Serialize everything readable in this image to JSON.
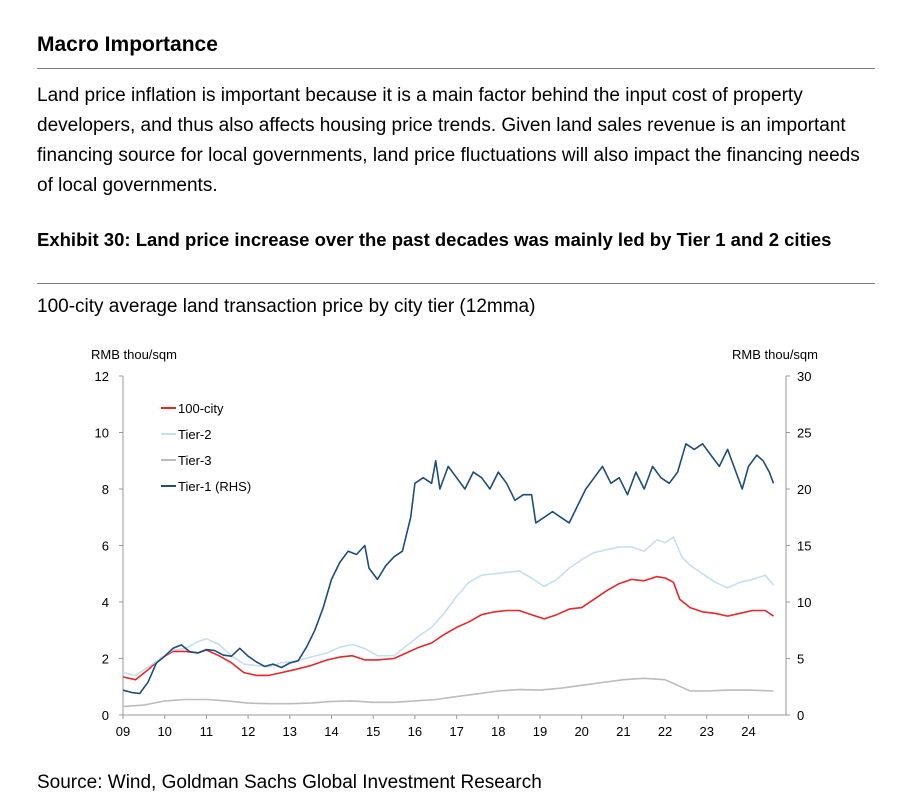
{
  "section_title": "Macro Importance",
  "paragraph": "Land price inflation is important because it is a main factor behind the input cost of property developers, and thus also affects housing price trends. Given land sales revenue is an important financing source for local governments, land price fluctuations will also impact the financing needs of local governments.",
  "exhibit_title": "Exhibit 30: Land price increase over the past decades was mainly led by Tier 1 and 2 cities",
  "chart_subtitle": "100-city average land transaction price by city tier (12mma)",
  "source": "Source: Wind, Goldman Sachs Global Investment Research",
  "chart_data": {
    "type": "line",
    "left_axis_label": "RMB thou/sqm",
    "right_axis_label": "RMB thou/sqm",
    "x_ticks": [
      "09",
      "10",
      "11",
      "12",
      "13",
      "14",
      "15",
      "16",
      "17",
      "18",
      "19",
      "20",
      "21",
      "22",
      "23",
      "24"
    ],
    "x_range": [
      2009,
      2024.9
    ],
    "y_left_range": [
      0,
      12
    ],
    "y_left_ticks": [
      "0",
      "2",
      "4",
      "6",
      "8",
      "10",
      "12"
    ],
    "y_right_range": [
      0,
      30
    ],
    "y_right_ticks": [
      "0",
      "5",
      "10",
      "15",
      "20",
      "25",
      "30"
    ],
    "grid": false,
    "legend_position": "top-left",
    "series": [
      {
        "name": "100-city",
        "axis": "left",
        "color": "#e8262a",
        "points": [
          [
            2009.0,
            1.35
          ],
          [
            2009.3,
            1.25
          ],
          [
            2009.6,
            1.6
          ],
          [
            2009.9,
            2.0
          ],
          [
            2010.2,
            2.25
          ],
          [
            2010.5,
            2.25
          ],
          [
            2010.8,
            2.2
          ],
          [
            2011.0,
            2.3
          ],
          [
            2011.3,
            2.1
          ],
          [
            2011.6,
            1.85
          ],
          [
            2011.9,
            1.5
          ],
          [
            2012.2,
            1.4
          ],
          [
            2012.5,
            1.4
          ],
          [
            2012.8,
            1.5
          ],
          [
            2013.1,
            1.6
          ],
          [
            2013.5,
            1.75
          ],
          [
            2013.9,
            1.95
          ],
          [
            2014.2,
            2.05
          ],
          [
            2014.5,
            2.1
          ],
          [
            2014.8,
            1.95
          ],
          [
            2015.1,
            1.95
          ],
          [
            2015.5,
            2.0
          ],
          [
            2015.8,
            2.2
          ],
          [
            2016.1,
            2.4
          ],
          [
            2016.4,
            2.55
          ],
          [
            2016.7,
            2.85
          ],
          [
            2017.0,
            3.1
          ],
          [
            2017.3,
            3.3
          ],
          [
            2017.6,
            3.55
          ],
          [
            2017.9,
            3.65
          ],
          [
            2018.2,
            3.7
          ],
          [
            2018.5,
            3.7
          ],
          [
            2018.8,
            3.55
          ],
          [
            2019.1,
            3.4
          ],
          [
            2019.4,
            3.55
          ],
          [
            2019.7,
            3.75
          ],
          [
            2020.0,
            3.8
          ],
          [
            2020.3,
            4.1
          ],
          [
            2020.6,
            4.4
          ],
          [
            2020.9,
            4.65
          ],
          [
            2021.2,
            4.8
          ],
          [
            2021.5,
            4.75
          ],
          [
            2021.8,
            4.9
          ],
          [
            2022.0,
            4.85
          ],
          [
            2022.2,
            4.7
          ],
          [
            2022.35,
            4.1
          ],
          [
            2022.6,
            3.8
          ],
          [
            2022.9,
            3.65
          ],
          [
            2023.2,
            3.6
          ],
          [
            2023.5,
            3.5
          ],
          [
            2023.8,
            3.6
          ],
          [
            2024.1,
            3.7
          ],
          [
            2024.4,
            3.7
          ],
          [
            2024.6,
            3.5
          ]
        ]
      },
      {
        "name": "Tier-2",
        "axis": "left",
        "color": "#c5dff0",
        "points": [
          [
            2009.0,
            1.5
          ],
          [
            2009.3,
            1.4
          ],
          [
            2009.6,
            1.7
          ],
          [
            2009.9,
            2.0
          ],
          [
            2010.2,
            2.3
          ],
          [
            2010.5,
            2.35
          ],
          [
            2010.8,
            2.6
          ],
          [
            2011.0,
            2.7
          ],
          [
            2011.3,
            2.5
          ],
          [
            2011.6,
            2.1
          ],
          [
            2011.9,
            1.8
          ],
          [
            2012.2,
            1.75
          ],
          [
            2012.5,
            1.7
          ],
          [
            2012.8,
            1.85
          ],
          [
            2013.1,
            1.9
          ],
          [
            2013.5,
            2.05
          ],
          [
            2013.9,
            2.2
          ],
          [
            2014.2,
            2.4
          ],
          [
            2014.5,
            2.5
          ],
          [
            2014.8,
            2.35
          ],
          [
            2015.1,
            2.1
          ],
          [
            2015.5,
            2.1
          ],
          [
            2015.8,
            2.45
          ],
          [
            2016.1,
            2.8
          ],
          [
            2016.4,
            3.1
          ],
          [
            2016.7,
            3.6
          ],
          [
            2017.0,
            4.2
          ],
          [
            2017.3,
            4.7
          ],
          [
            2017.6,
            4.95
          ],
          [
            2017.9,
            5.0
          ],
          [
            2018.2,
            5.05
          ],
          [
            2018.5,
            5.1
          ],
          [
            2018.8,
            4.85
          ],
          [
            2019.1,
            4.55
          ],
          [
            2019.4,
            4.8
          ],
          [
            2019.7,
            5.2
          ],
          [
            2020.0,
            5.5
          ],
          [
            2020.3,
            5.75
          ],
          [
            2020.6,
            5.85
          ],
          [
            2020.9,
            5.95
          ],
          [
            2021.2,
            5.95
          ],
          [
            2021.5,
            5.8
          ],
          [
            2021.8,
            6.2
          ],
          [
            2022.0,
            6.1
          ],
          [
            2022.2,
            6.3
          ],
          [
            2022.4,
            5.6
          ],
          [
            2022.6,
            5.3
          ],
          [
            2022.9,
            5.0
          ],
          [
            2023.2,
            4.7
          ],
          [
            2023.5,
            4.5
          ],
          [
            2023.8,
            4.7
          ],
          [
            2024.1,
            4.8
          ],
          [
            2024.4,
            4.95
          ],
          [
            2024.6,
            4.6
          ]
        ]
      },
      {
        "name": "Tier-3",
        "axis": "left",
        "color": "#bcbcbc",
        "points": [
          [
            2009.0,
            0.3
          ],
          [
            2009.5,
            0.35
          ],
          [
            2010.0,
            0.5
          ],
          [
            2010.5,
            0.55
          ],
          [
            2011.0,
            0.55
          ],
          [
            2011.5,
            0.5
          ],
          [
            2012.0,
            0.42
          ],
          [
            2012.5,
            0.4
          ],
          [
            2013.0,
            0.4
          ],
          [
            2013.5,
            0.42
          ],
          [
            2014.0,
            0.48
          ],
          [
            2014.5,
            0.5
          ],
          [
            2015.0,
            0.45
          ],
          [
            2015.5,
            0.45
          ],
          [
            2016.0,
            0.5
          ],
          [
            2016.5,
            0.55
          ],
          [
            2017.0,
            0.65
          ],
          [
            2017.5,
            0.75
          ],
          [
            2018.0,
            0.85
          ],
          [
            2018.5,
            0.9
          ],
          [
            2019.0,
            0.88
          ],
          [
            2019.5,
            0.95
          ],
          [
            2020.0,
            1.05
          ],
          [
            2020.5,
            1.15
          ],
          [
            2021.0,
            1.25
          ],
          [
            2021.5,
            1.3
          ],
          [
            2022.0,
            1.25
          ],
          [
            2022.3,
            1.05
          ],
          [
            2022.6,
            0.85
          ],
          [
            2023.0,
            0.85
          ],
          [
            2023.5,
            0.88
          ],
          [
            2024.0,
            0.88
          ],
          [
            2024.6,
            0.85
          ]
        ]
      },
      {
        "name": "Tier-1 (RHS)",
        "axis": "right",
        "color": "#1e4d78",
        "points": [
          [
            2009.0,
            2.2
          ],
          [
            2009.2,
            2.0
          ],
          [
            2009.4,
            1.9
          ],
          [
            2009.6,
            2.9
          ],
          [
            2009.8,
            4.6
          ],
          [
            2010.0,
            5.2
          ],
          [
            2010.2,
            5.9
          ],
          [
            2010.4,
            6.2
          ],
          [
            2010.6,
            5.6
          ],
          [
            2010.8,
            5.5
          ],
          [
            2011.0,
            5.8
          ],
          [
            2011.2,
            5.7
          ],
          [
            2011.4,
            5.3
          ],
          [
            2011.6,
            5.2
          ],
          [
            2011.8,
            5.9
          ],
          [
            2012.0,
            5.2
          ],
          [
            2012.2,
            4.7
          ],
          [
            2012.4,
            4.3
          ],
          [
            2012.6,
            4.5
          ],
          [
            2012.8,
            4.2
          ],
          [
            2013.0,
            4.6
          ],
          [
            2013.2,
            4.8
          ],
          [
            2013.4,
            6.0
          ],
          [
            2013.6,
            7.5
          ],
          [
            2013.8,
            9.5
          ],
          [
            2014.0,
            12.0
          ],
          [
            2014.2,
            13.5
          ],
          [
            2014.4,
            14.5
          ],
          [
            2014.6,
            14.2
          ],
          [
            2014.8,
            15.0
          ],
          [
            2014.9,
            13.0
          ],
          [
            2015.1,
            12.0
          ],
          [
            2015.3,
            13.2
          ],
          [
            2015.5,
            14.0
          ],
          [
            2015.7,
            14.5
          ],
          [
            2015.9,
            17.5
          ],
          [
            2016.0,
            20.5
          ],
          [
            2016.2,
            21.0
          ],
          [
            2016.4,
            20.5
          ],
          [
            2016.5,
            22.5
          ],
          [
            2016.6,
            20.0
          ],
          [
            2016.8,
            22.0
          ],
          [
            2017.0,
            21.0
          ],
          [
            2017.2,
            20.0
          ],
          [
            2017.4,
            21.5
          ],
          [
            2017.6,
            21.0
          ],
          [
            2017.8,
            20.0
          ],
          [
            2018.0,
            21.5
          ],
          [
            2018.2,
            20.5
          ],
          [
            2018.4,
            19.0
          ],
          [
            2018.6,
            19.5
          ],
          [
            2018.8,
            19.5
          ],
          [
            2018.9,
            17.0
          ],
          [
            2019.1,
            17.5
          ],
          [
            2019.3,
            18.0
          ],
          [
            2019.5,
            17.5
          ],
          [
            2019.7,
            17.0
          ],
          [
            2019.9,
            18.5
          ],
          [
            2020.1,
            20.0
          ],
          [
            2020.3,
            21.0
          ],
          [
            2020.5,
            22.0
          ],
          [
            2020.7,
            20.5
          ],
          [
            2020.9,
            21.0
          ],
          [
            2021.1,
            19.5
          ],
          [
            2021.3,
            21.5
          ],
          [
            2021.5,
            20.0
          ],
          [
            2021.7,
            22.0
          ],
          [
            2021.9,
            21.0
          ],
          [
            2022.1,
            20.5
          ],
          [
            2022.3,
            21.5
          ],
          [
            2022.5,
            24.0
          ],
          [
            2022.7,
            23.5
          ],
          [
            2022.9,
            24.0
          ],
          [
            2023.1,
            23.0
          ],
          [
            2023.3,
            22.0
          ],
          [
            2023.5,
            23.5
          ],
          [
            2023.7,
            21.5
          ],
          [
            2023.85,
            20.0
          ],
          [
            2024.0,
            22.0
          ],
          [
            2024.2,
            23.0
          ],
          [
            2024.35,
            22.5
          ],
          [
            2024.5,
            21.5
          ],
          [
            2024.6,
            20.5
          ]
        ]
      }
    ]
  }
}
